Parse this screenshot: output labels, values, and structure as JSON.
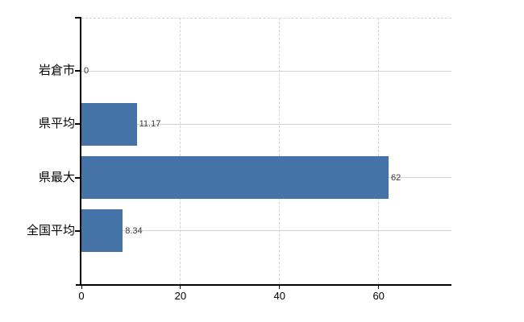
{
  "chart_data": {
    "type": "bar",
    "orientation": "horizontal",
    "title": "",
    "categories": [
      "岩倉市",
      "県平均",
      "県最大",
      "全国平均"
    ],
    "values": [
      0,
      11.17,
      62,
      8.34
    ],
    "value_labels": [
      "0",
      "11.17",
      "62",
      "8.34"
    ],
    "xticks": [
      0,
      20,
      40,
      60
    ],
    "xtick_labels": [
      "0",
      "20",
      "40",
      "60"
    ],
    "xlim": [
      0,
      74.7
    ],
    "xlabel": "",
    "ylabel": "",
    "legend": "none",
    "grid": "horizontal-solid-at-category-centers, vertical-dashed-at-xticks, dashed-top-border"
  },
  "colors": {
    "bar": "#4573a8",
    "axis": "#000000",
    "grid_horizontal": "#cfd5cb",
    "grid_vertical": "#d5d2d8",
    "category_label": "#000000",
    "tick_label": "#000000",
    "value_label": "#3a3a3a",
    "background": "#ffffff"
  }
}
